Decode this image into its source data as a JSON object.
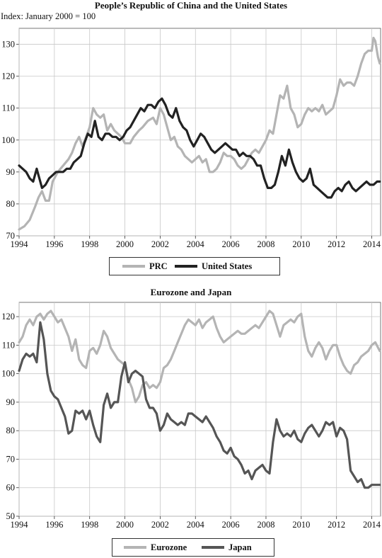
{
  "chart_data": [
    {
      "type": "line",
      "title": "People’s Republic of China and the United States",
      "subtitle": "Index: January 2000 = 100",
      "xlabel": "",
      "ylabel": "",
      "xlim": [
        1994,
        2014.5
      ],
      "ylim": [
        70,
        135
      ],
      "xticks": [
        1994,
        1996,
        1998,
        2000,
        2002,
        2004,
        2006,
        2008,
        2010,
        2012,
        2014
      ],
      "yticks": [
        70,
        80,
        90,
        100,
        110,
        120,
        130
      ],
      "grid": true,
      "legend": "bottom",
      "series": [
        {
          "name": "PRC",
          "color": "#b4b4b4",
          "x": [
            1994.0,
            1994.3,
            1994.6,
            1994.9,
            1995.1,
            1995.3,
            1995.5,
            1995.7,
            1995.9,
            1996.0,
            1996.2,
            1996.5,
            1996.8,
            1997.0,
            1997.2,
            1997.4,
            1997.6,
            1997.8,
            1998.0,
            1998.2,
            1998.4,
            1998.6,
            1998.8,
            1999.0,
            1999.2,
            1999.4,
            1999.6,
            1999.8,
            2000.0,
            2000.3,
            2000.5,
            2000.8,
            2001.0,
            2001.3,
            2001.6,
            2001.8,
            2002.0,
            2002.2,
            2002.4,
            2002.6,
            2002.8,
            2003.0,
            2003.2,
            2003.4,
            2003.6,
            2003.8,
            2004.0,
            2004.2,
            2004.4,
            2004.6,
            2004.8,
            2005.0,
            2005.2,
            2005.4,
            2005.6,
            2005.8,
            2006.0,
            2006.2,
            2006.4,
            2006.6,
            2006.8,
            2007.0,
            2007.2,
            2007.4,
            2007.6,
            2007.8,
            2008.0,
            2008.2,
            2008.4,
            2008.6,
            2008.8,
            2009.0,
            2009.2,
            2009.4,
            2009.6,
            2009.8,
            2010.0,
            2010.2,
            2010.4,
            2010.6,
            2010.8,
            2011.0,
            2011.2,
            2011.4,
            2011.6,
            2011.8,
            2012.0,
            2012.2,
            2012.4,
            2012.6,
            2012.8,
            2013.0,
            2013.2,
            2013.4,
            2013.6,
            2013.8,
            2014.0,
            2014.1,
            2014.2,
            2014.35,
            2014.45
          ],
          "values": [
            72,
            73,
            75,
            79,
            82,
            84,
            81,
            81,
            87,
            88,
            90,
            92,
            94,
            96,
            99,
            101,
            98,
            101,
            104,
            110,
            108,
            107,
            108,
            103,
            105,
            103,
            102,
            101,
            99,
            99,
            101,
            103,
            104,
            106,
            107,
            105,
            110,
            108,
            104,
            100,
            101,
            98,
            97,
            95,
            94,
            93,
            94,
            95,
            93,
            94,
            90,
            90,
            91,
            93,
            96,
            95,
            95,
            94,
            92,
            91,
            92,
            94,
            96,
            97,
            96,
            98,
            100,
            103,
            102,
            108,
            114,
            113,
            117,
            110,
            108,
            104,
            105,
            108,
            110,
            109,
            110,
            109,
            111,
            108,
            109,
            110,
            114,
            119,
            117,
            118,
            118,
            117,
            120,
            124,
            127,
            128,
            128,
            132,
            131,
            126,
            124
          ]
        },
        {
          "name": "United States",
          "color": "#222222",
          "x": [
            1994.0,
            1994.2,
            1994.4,
            1994.6,
            1994.8,
            1995.0,
            1995.1,
            1995.3,
            1995.5,
            1995.7,
            1995.9,
            1996.1,
            1996.3,
            1996.5,
            1996.7,
            1996.9,
            1997.1,
            1997.3,
            1997.5,
            1997.7,
            1997.9,
            1998.1,
            1998.3,
            1998.5,
            1998.7,
            1998.9,
            1999.1,
            1999.3,
            1999.5,
            1999.7,
            1999.9,
            2000.1,
            2000.3,
            2000.5,
            2000.7,
            2000.9,
            2001.1,
            2001.3,
            2001.5,
            2001.7,
            2001.9,
            2002.1,
            2002.3,
            2002.5,
            2002.7,
            2002.9,
            2003.1,
            2003.3,
            2003.5,
            2003.7,
            2003.9,
            2004.1,
            2004.3,
            2004.5,
            2004.7,
            2004.9,
            2005.1,
            2005.3,
            2005.5,
            2005.7,
            2005.9,
            2006.1,
            2006.3,
            2006.5,
            2006.7,
            2006.9,
            2007.1,
            2007.3,
            2007.5,
            2007.7,
            2007.9,
            2008.1,
            2008.3,
            2008.5,
            2008.7,
            2008.9,
            2009.1,
            2009.3,
            2009.5,
            2009.7,
            2009.9,
            2010.1,
            2010.3,
            2010.5,
            2010.7,
            2010.9,
            2011.1,
            2011.3,
            2011.5,
            2011.7,
            2011.9,
            2012.1,
            2012.3,
            2012.5,
            2012.7,
            2012.9,
            2013.1,
            2013.3,
            2013.5,
            2013.7,
            2013.9,
            2014.1,
            2014.3,
            2014.45
          ],
          "values": [
            92,
            91,
            90,
            88,
            87,
            91,
            89,
            85,
            86,
            88,
            89,
            90,
            90,
            90,
            91,
            91,
            93,
            94,
            95,
            99,
            102,
            101,
            106,
            101,
            100,
            102,
            102,
            101,
            101,
            100,
            101,
            103,
            104,
            106,
            108,
            110,
            109,
            111,
            111,
            110,
            112,
            113,
            111,
            108,
            107,
            110,
            106,
            104,
            103,
            100,
            98,
            100,
            102,
            101,
            99,
            97,
            96,
            97,
            98,
            99,
            98,
            97,
            97,
            95,
            96,
            95,
            95,
            94,
            92,
            92,
            88,
            85,
            85,
            86,
            90,
            95,
            92,
            97,
            93,
            90,
            88,
            87,
            88,
            91,
            86,
            85,
            84,
            83,
            82,
            82,
            84,
            85,
            84,
            86,
            87,
            85,
            84,
            85,
            86,
            87,
            86,
            86,
            87,
            87
          ]
        }
      ]
    },
    {
      "type": "line",
      "title": "Eurozone and Japan",
      "xlabel": "",
      "ylabel": "",
      "xlim": [
        1994,
        2014.5
      ],
      "ylim": [
        50,
        125
      ],
      "xticks": [
        1994,
        1996,
        1998,
        2000,
        2002,
        2004,
        2006,
        2008,
        2010,
        2012,
        2014
      ],
      "yticks": [
        50,
        60,
        70,
        80,
        90,
        100,
        110,
        120
      ],
      "grid": true,
      "legend": "bottom",
      "series": [
        {
          "name": "Eurozone",
          "color": "#b4b4b4",
          "x": [
            1994.0,
            1994.2,
            1994.4,
            1994.6,
            1994.8,
            1995.0,
            1995.2,
            1995.4,
            1995.6,
            1995.8,
            1996.0,
            1996.2,
            1996.4,
            1996.6,
            1996.8,
            1997.0,
            1997.2,
            1997.4,
            1997.6,
            1997.8,
            1998.0,
            1998.2,
            1998.4,
            1998.6,
            1998.8,
            1999.0,
            1999.2,
            1999.4,
            1999.6,
            1999.8,
            2000.0,
            2000.2,
            2000.4,
            2000.6,
            2000.8,
            2001.0,
            2001.2,
            2001.4,
            2001.6,
            2001.8,
            2002.0,
            2002.2,
            2002.4,
            2002.6,
            2002.8,
            2003.0,
            2003.2,
            2003.4,
            2003.6,
            2003.8,
            2004.0,
            2004.2,
            2004.4,
            2004.6,
            2004.8,
            2005.0,
            2005.2,
            2005.4,
            2005.6,
            2005.8,
            2006.0,
            2006.2,
            2006.4,
            2006.6,
            2006.8,
            2007.0,
            2007.2,
            2007.4,
            2007.6,
            2007.8,
            2008.0,
            2008.2,
            2008.4,
            2008.6,
            2008.8,
            2009.0,
            2009.2,
            2009.4,
            2009.6,
            2009.8,
            2010.0,
            2010.2,
            2010.4,
            2010.6,
            2010.8,
            2011.0,
            2011.2,
            2011.4,
            2011.6,
            2011.8,
            2012.0,
            2012.2,
            2012.4,
            2012.6,
            2012.8,
            2013.0,
            2013.2,
            2013.4,
            2013.6,
            2013.8,
            2014.0,
            2014.2,
            2014.45
          ],
          "values": [
            111,
            113,
            117,
            119,
            117,
            120,
            121,
            119,
            121,
            122,
            120,
            118,
            119,
            116,
            113,
            108,
            112,
            105,
            103,
            102,
            108,
            109,
            107,
            110,
            115,
            113,
            109,
            107,
            105,
            104,
            103,
            98,
            95,
            90,
            92,
            96,
            97,
            95,
            96,
            95,
            97,
            102,
            103,
            105,
            108,
            111,
            114,
            117,
            119,
            118,
            117,
            119,
            116,
            118,
            119,
            120,
            116,
            113,
            111,
            112,
            113,
            114,
            115,
            114,
            114,
            115,
            116,
            117,
            116,
            118,
            120,
            122,
            121,
            117,
            113,
            117,
            118,
            119,
            118,
            120,
            121,
            113,
            108,
            106,
            109,
            111,
            109,
            105,
            108,
            110,
            110,
            106,
            103,
            101,
            100,
            103,
            104,
            106,
            107,
            108,
            110,
            111,
            108
          ]
        },
        {
          "name": "Japan",
          "color": "#555555",
          "x": [
            1994.0,
            1994.2,
            1994.4,
            1994.6,
            1994.8,
            1995.0,
            1995.2,
            1995.4,
            1995.6,
            1995.8,
            1996.0,
            1996.2,
            1996.4,
            1996.6,
            1996.8,
            1997.0,
            1997.2,
            1997.4,
            1997.6,
            1997.8,
            1998.0,
            1998.2,
            1998.4,
            1998.6,
            1998.8,
            1999.0,
            1999.2,
            1999.4,
            1999.6,
            1999.8,
            2000.0,
            2000.2,
            2000.4,
            2000.6,
            2000.8,
            2001.0,
            2001.2,
            2001.4,
            2001.6,
            2001.8,
            2002.0,
            2002.2,
            2002.4,
            2002.6,
            2002.8,
            2003.0,
            2003.2,
            2003.4,
            2003.6,
            2003.8,
            2004.0,
            2004.2,
            2004.4,
            2004.6,
            2004.8,
            2005.0,
            2005.2,
            2005.4,
            2005.6,
            2005.8,
            2006.0,
            2006.2,
            2006.4,
            2006.6,
            2006.8,
            2007.0,
            2007.2,
            2007.4,
            2007.6,
            2007.8,
            2008.0,
            2008.2,
            2008.4,
            2008.6,
            2008.8,
            2009.0,
            2009.2,
            2009.4,
            2009.6,
            2009.8,
            2010.0,
            2010.2,
            2010.4,
            2010.6,
            2010.8,
            2011.0,
            2011.2,
            2011.4,
            2011.6,
            2011.8,
            2012.0,
            2012.2,
            2012.4,
            2012.6,
            2012.8,
            2013.0,
            2013.2,
            2013.4,
            2013.6,
            2013.8,
            2014.0,
            2014.2,
            2014.45
          ],
          "values": [
            101,
            105,
            107,
            106,
            107,
            104,
            118,
            112,
            100,
            94,
            92,
            91,
            88,
            85,
            79,
            80,
            87,
            86,
            87,
            84,
            87,
            82,
            78,
            76,
            89,
            93,
            88,
            90,
            90,
            99,
            104,
            97,
            100,
            101,
            100,
            99,
            91,
            88,
            88,
            86,
            80,
            82,
            86,
            84,
            83,
            82,
            83,
            82,
            86,
            86,
            85,
            84,
            83,
            85,
            83,
            81,
            78,
            76,
            73,
            72,
            74,
            71,
            70,
            68,
            65,
            66,
            63,
            66,
            67,
            68,
            66,
            65,
            76,
            84,
            80,
            78,
            79,
            78,
            80,
            77,
            76,
            79,
            81,
            82,
            80,
            78,
            80,
            83,
            82,
            83,
            78,
            81,
            80,
            77,
            66,
            64,
            62,
            63,
            60,
            60,
            61,
            61,
            61
          ]
        }
      ]
    }
  ]
}
